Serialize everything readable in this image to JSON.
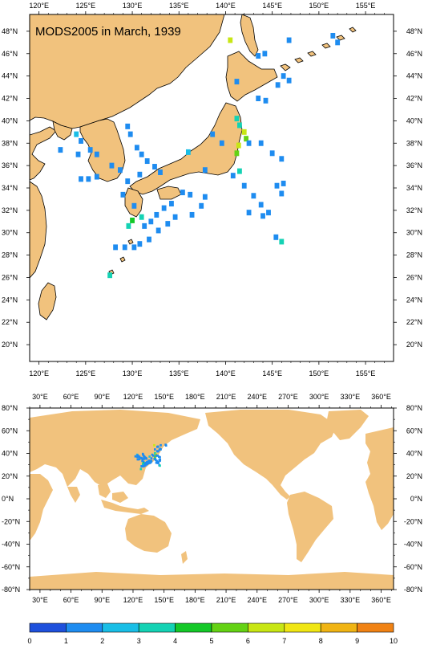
{
  "top_map": {
    "title": "MODS2005 in March, 1939",
    "lon_labels": [
      "120°E",
      "125°E",
      "130°E",
      "135°E",
      "140°E",
      "145°E",
      "150°E",
      "155°E"
    ],
    "lat_labels": [
      "48°N",
      "46°N",
      "44°N",
      "42°N",
      "40°N",
      "38°N",
      "36°N",
      "34°N",
      "32°N",
      "30°N",
      "28°N",
      "26°N",
      "24°N",
      "22°N",
      "20°N"
    ],
    "extent": {
      "lon": [
        119,
        158
      ],
      "lat": [
        18.5,
        49.5
      ]
    },
    "land_color": "#f1c27d"
  },
  "bottom_map": {
    "lon_labels": [
      "30°E",
      "60°E",
      "90°E",
      "120°E",
      "150°E",
      "180°E",
      "210°E",
      "240°E",
      "270°E",
      "300°E",
      "330°E",
      "360°E"
    ],
    "lat_labels": [
      "80°N",
      "60°N",
      "40°N",
      "20°N",
      "0°N",
      "-20°N",
      "-40°N",
      "-60°N",
      "-80°N"
    ],
    "extent": {
      "lon": [
        20,
        372
      ],
      "lat": [
        -80,
        80
      ]
    },
    "land_color": "#f1c27d"
  },
  "colorbar": {
    "labels": [
      "0",
      "1",
      "2",
      "3",
      "4",
      "5",
      "6",
      "7",
      "8",
      "9",
      "10"
    ],
    "colors": [
      "#1e50dc",
      "#1e8cf0",
      "#19bee6",
      "#14d2b4",
      "#14c828",
      "#64d214",
      "#c8e614",
      "#f0e614",
      "#f0b414",
      "#f08214",
      "#f04614"
    ]
  },
  "chart_data": {
    "type": "heatmap",
    "title": "MODS2005 in March, 1939",
    "value_range": [
      0,
      10
    ],
    "cells_top_lonlat": [
      [
        140.5,
        47.2
      ],
      [
        143.5,
        45.8
      ],
      [
        144.2,
        46.0
      ],
      [
        146.8,
        47.2
      ],
      [
        151.5,
        47.6
      ],
      [
        152,
        47.0
      ],
      [
        146.2,
        44.0
      ],
      [
        146.8,
        43.6
      ],
      [
        145.6,
        43.2
      ],
      [
        141.2,
        43.5
      ],
      [
        143.5,
        42.0
      ],
      [
        144.3,
        41.8
      ],
      [
        141.2,
        40.2
      ],
      [
        141.5,
        39.6
      ],
      [
        142.0,
        39.0
      ],
      [
        142.2,
        38.4
      ],
      [
        141.4,
        37.8
      ],
      [
        141.2,
        37.1
      ],
      [
        142.5,
        38.0
      ],
      [
        143.8,
        38.0
      ],
      [
        145.0,
        37.1
      ],
      [
        146.0,
        36.6
      ],
      [
        141.5,
        35.5
      ],
      [
        140.8,
        35.1
      ],
      [
        142.0,
        34.2
      ],
      [
        143.0,
        33.3
      ],
      [
        143.8,
        32.5
      ],
      [
        144.6,
        31.8
      ],
      [
        145.5,
        34.2
      ],
      [
        146.0,
        33.5
      ],
      [
        146.2,
        34.4
      ],
      [
        145.4,
        29.6
      ],
      [
        146.0,
        29.2
      ],
      [
        144.0,
        31.5
      ],
      [
        142.5,
        31.8
      ],
      [
        124.0,
        38.8
      ],
      [
        124.5,
        38.2
      ],
      [
        125.5,
        37.4
      ],
      [
        126.2,
        37.0
      ],
      [
        124.2,
        37.0
      ],
      [
        122.3,
        37.4
      ],
      [
        129.5,
        39.5
      ],
      [
        129.8,
        38.8
      ],
      [
        130.5,
        37.6
      ],
      [
        131.0,
        37.0
      ],
      [
        131.6,
        36.4
      ],
      [
        132.4,
        35.9
      ],
      [
        133.0,
        35.4
      ],
      [
        130.8,
        35.2
      ],
      [
        129.5,
        34.6
      ],
      [
        128.7,
        35.6
      ],
      [
        127.8,
        36.0
      ],
      [
        126.2,
        35.0
      ],
      [
        125.3,
        34.8
      ],
      [
        124.5,
        34.8
      ],
      [
        129.0,
        33.4
      ],
      [
        130.2,
        32.4
      ],
      [
        131.0,
        31.4
      ],
      [
        130.0,
        31.1
      ],
      [
        129.6,
        30.6
      ],
      [
        131.3,
        30.6
      ],
      [
        132.0,
        31.0
      ],
      [
        132.6,
        31.6
      ],
      [
        133.4,
        32.2
      ],
      [
        134.2,
        32.6
      ],
      [
        134.6,
        31.4
      ],
      [
        133.8,
        30.8
      ],
      [
        132.8,
        30.2
      ],
      [
        131.8,
        29.4
      ],
      [
        130.8,
        29.0
      ],
      [
        130.2,
        28.7
      ],
      [
        129.2,
        28.7
      ],
      [
        128.2,
        28.7
      ],
      [
        127.6,
        26.2
      ],
      [
        135.4,
        33.6
      ],
      [
        136.2,
        33.4
      ],
      [
        137.8,
        33.2
      ],
      [
        137.4,
        32.4
      ],
      [
        136.4,
        31.6
      ],
      [
        137.8,
        35.6
      ],
      [
        136.0,
        37.2
      ],
      [
        138.6,
        38.8
      ],
      [
        139.6,
        38.0
      ]
    ],
    "cells_top_values": [
      6,
      1,
      1,
      1,
      1,
      1,
      1,
      1,
      1,
      1,
      1,
      1,
      3,
      3,
      6,
      5,
      6,
      5,
      1,
      1,
      1,
      1,
      3,
      1,
      1,
      1,
      1,
      1,
      1,
      1,
      1,
      1,
      3,
      1,
      1,
      2,
      1,
      1,
      1,
      1,
      1,
      1,
      1,
      1,
      1,
      1,
      1,
      1,
      1,
      1,
      1,
      1,
      1,
      1,
      1,
      1,
      1,
      3,
      4,
      3,
      1,
      1,
      1,
      1,
      1,
      1,
      1,
      1,
      1,
      1,
      1,
      1,
      1,
      3,
      1,
      1,
      1,
      1,
      1,
      1,
      2,
      1,
      1
    ]
  }
}
